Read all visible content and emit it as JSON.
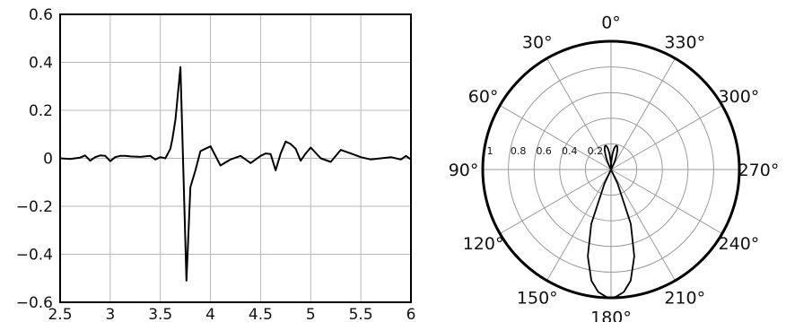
{
  "chart_data": [
    {
      "type": "line",
      "title": "",
      "xlabel": "",
      "ylabel": "",
      "xlim": [
        2.5,
        6
      ],
      "ylim": [
        -0.6,
        0.6
      ],
      "grid": true,
      "x_ticks": [
        "2.5",
        "3",
        "3.5",
        "4",
        "4.5",
        "5",
        "5.5",
        "6"
      ],
      "y_ticks": [
        "0.6",
        "0.4",
        "0.2",
        "0",
        "−0.2",
        "−0.4",
        "−0.6"
      ],
      "series": [
        {
          "x": [
            2.5,
            2.6,
            2.7,
            2.75,
            2.8,
            2.85,
            2.9,
            2.95,
            3.0,
            3.05,
            3.1,
            3.15,
            3.2,
            3.3,
            3.4,
            3.45,
            3.5,
            3.55,
            3.6,
            3.62,
            3.65,
            3.7,
            3.76,
            3.8,
            3.85,
            3.9,
            3.95,
            4.0,
            4.1,
            4.2,
            4.3,
            4.4,
            4.5,
            4.55,
            4.6,
            4.65,
            4.7,
            4.75,
            4.8,
            4.85,
            4.9,
            4.95,
            5.0,
            5.1,
            5.2,
            5.3,
            5.4,
            5.5,
            5.6,
            5.7,
            5.8,
            5.9,
            5.95,
            6.0
          ],
          "y": [
            0.0,
            -0.003,
            0.003,
            0.012,
            -0.01,
            0.005,
            0.012,
            0.01,
            -0.012,
            0.005,
            0.01,
            0.01,
            0.008,
            0.006,
            0.01,
            -0.005,
            0.005,
            0.0,
            0.04,
            0.08,
            0.16,
            0.38,
            -0.51,
            -0.12,
            -0.05,
            0.03,
            0.04,
            0.05,
            -0.03,
            -0.005,
            0.01,
            -0.02,
            0.01,
            0.02,
            0.018,
            -0.05,
            0.02,
            0.07,
            0.06,
            0.04,
            -0.01,
            0.02,
            0.045,
            0.0,
            -0.015,
            0.035,
            0.02,
            0.005,
            -0.005,
            0.0,
            0.005,
            -0.005,
            0.01,
            -0.005
          ]
        }
      ]
    },
    {
      "type": "polar",
      "title": "",
      "radial_range": [
        0,
        1
      ],
      "radial_ticks": [
        "0.2",
        "0.4",
        "0.6",
        "0.8",
        "1"
      ],
      "angle_ticks": [
        "0°",
        "330°",
        "300°",
        "270°",
        "240°",
        "210°",
        "180°",
        "150°",
        "120°",
        "90°",
        "60°",
        "30°"
      ],
      "angle_values": [
        0,
        330,
        300,
        270,
        240,
        210,
        180,
        150,
        120,
        90,
        60,
        30
      ],
      "zero_direction": "top",
      "direction": "counterclockwise",
      "grid": true,
      "series": [
        {
          "theta_deg": [
            0,
            2,
            4,
            6,
            8,
            10,
            12,
            14,
            16,
            18,
            20,
            22,
            24,
            26,
            28,
            30,
            40,
            60,
            90,
            120,
            140,
            150,
            155,
            160,
            165,
            170,
            174,
            178,
            180,
            182,
            186,
            190,
            195,
            200,
            205,
            210,
            220,
            240,
            270,
            300,
            320,
            330,
            332,
            334,
            336,
            338,
            340,
            342,
            344,
            346,
            348,
            350,
            352,
            354,
            356,
            358,
            360
          ],
          "r": [
            0.0,
            0.05,
            0.09,
            0.13,
            0.16,
            0.18,
            0.19,
            0.19,
            0.18,
            0.16,
            0.13,
            0.1,
            0.07,
            0.04,
            0.02,
            0.0,
            0.0,
            0.0,
            0.0,
            0.0,
            0.0,
            0.0,
            0.12,
            0.45,
            0.7,
            0.88,
            0.96,
            0.995,
            1.0,
            0.995,
            0.96,
            0.88,
            0.7,
            0.45,
            0.12,
            0.0,
            0.0,
            0.0,
            0.0,
            0.0,
            0.0,
            0.0,
            0.02,
            0.04,
            0.07,
            0.1,
            0.13,
            0.16,
            0.18,
            0.19,
            0.19,
            0.18,
            0.16,
            0.13,
            0.09,
            0.05,
            0.0
          ]
        }
      ]
    }
  ]
}
